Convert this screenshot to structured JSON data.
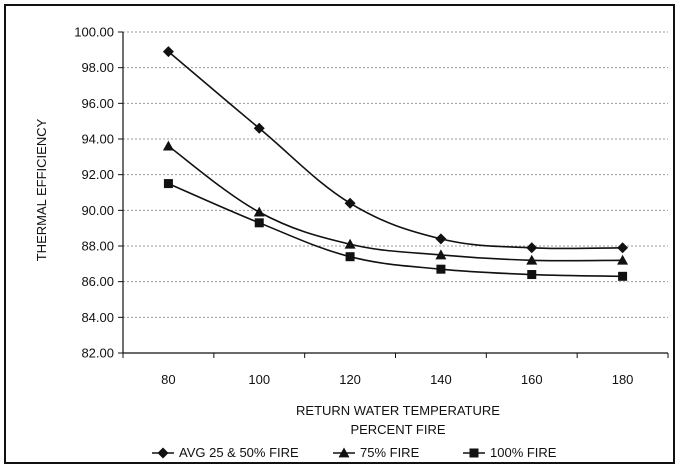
{
  "chart_data": {
    "type": "line",
    "title": "",
    "xlabel": "RETURN WATER TEMPERATURE",
    "xlabel_line2": "PERCENT FIRE",
    "ylabel": "THERMAL EFFICIENCY",
    "x": [
      80,
      100,
      120,
      140,
      160,
      180
    ],
    "x_tick_labels": [
      "80",
      "100",
      "120",
      "140",
      "160",
      "180"
    ],
    "y_tick_labels": [
      "100.00",
      "98.00",
      "96.00",
      "94.00",
      "92.00",
      "90.00",
      "88.00",
      "86.00",
      "84.00",
      "82.00"
    ],
    "ylim": [
      82,
      100
    ],
    "xlim": [
      70,
      190
    ],
    "grid": "horizontal gridlines",
    "legend_position": "bottom",
    "series": [
      {
        "name": "AVG 25 & 50% FIRE",
        "marker": "diamond",
        "values": [
          98.9,
          94.6,
          90.4,
          88.4,
          87.9,
          87.9
        ]
      },
      {
        "name": "75% FIRE",
        "marker": "triangle",
        "values": [
          93.6,
          89.9,
          88.1,
          87.5,
          87.2,
          87.2
        ]
      },
      {
        "name": "100% FIRE",
        "marker": "square",
        "values": [
          91.5,
          89.3,
          87.4,
          86.7,
          86.4,
          86.3
        ]
      }
    ],
    "colors": {
      "line": "#111111",
      "grid": "#9a9a9a",
      "axis": "#111111"
    }
  }
}
